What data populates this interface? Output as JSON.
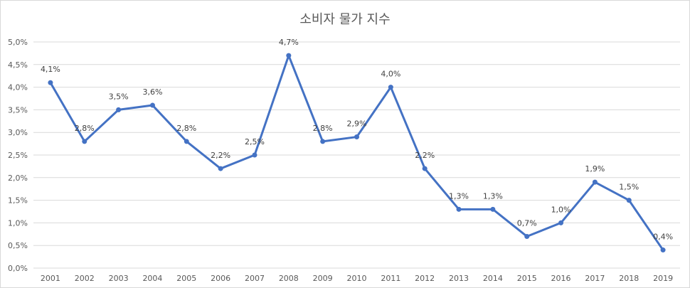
{
  "chart_data": {
    "type": "line",
    "title": "소비자 물가 지수",
    "xlabel": "",
    "ylabel": "",
    "categories": [
      "2001",
      "2002",
      "2003",
      "2004",
      "2005",
      "2006",
      "2007",
      "2008",
      "2009",
      "2010",
      "2011",
      "2012",
      "2013",
      "2014",
      "2015",
      "2016",
      "2017",
      "2018",
      "2019"
    ],
    "series": [
      {
        "name": "소비자 물가 지수",
        "values": [
          4.1,
          2.8,
          3.5,
          3.6,
          2.8,
          2.2,
          2.5,
          4.7,
          2.8,
          2.9,
          4.0,
          2.2,
          1.3,
          1.3,
          0.7,
          1.0,
          1.9,
          1.5,
          0.4
        ],
        "labels": [
          "4,1%",
          "2,8%",
          "3,5%",
          "3,6%",
          "2,8%",
          "2,2%",
          "2,5%",
          "4,7%",
          "2,8%",
          "2,9%",
          "4,0%",
          "2,2%",
          "1,3%",
          "1,3%",
          "0,7%",
          "1,0%",
          "1,9%",
          "1,5%",
          "0,4%"
        ],
        "color": "#4472c4"
      }
    ],
    "ylim": [
      0,
      5
    ],
    "yticks": [
      "0,0%",
      "0,5%",
      "1,0%",
      "1,5%",
      "2,0%",
      "2,5%",
      "3,0%",
      "3,5%",
      "4,0%",
      "4,5%",
      "5,0%"
    ],
    "grid": true,
    "legend": "none"
  },
  "colors": {
    "line": "#4472c4",
    "grid": "#d9d9d9",
    "text": "#595959"
  }
}
